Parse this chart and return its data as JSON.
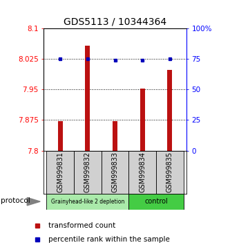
{
  "title": "GDS5113 / 10344364",
  "samples": [
    "GSM999831",
    "GSM999832",
    "GSM999833",
    "GSM999834",
    "GSM999835"
  ],
  "transformed_counts": [
    7.872,
    8.057,
    7.872,
    7.952,
    7.997
  ],
  "percentile_ranks": [
    75,
    75,
    74,
    74,
    75
  ],
  "ylim_left": [
    7.8,
    8.1
  ],
  "ylim_right": [
    0,
    100
  ],
  "yticks_left": [
    7.8,
    7.875,
    7.95,
    8.025,
    8.1
  ],
  "yticks_right": [
    0,
    25,
    50,
    75,
    100
  ],
  "ytick_labels_left": [
    "7.8",
    "7.875",
    "7.95",
    "8.025",
    "8.1"
  ],
  "ytick_labels_right": [
    "0",
    "25",
    "50",
    "75",
    "100%"
  ],
  "bar_color": "#bb1111",
  "dot_color": "#0000bb",
  "group1_samples": [
    0,
    1,
    2
  ],
  "group2_samples": [
    3,
    4
  ],
  "group1_label": "Grainyhead-like 2 depletion",
  "group2_label": "control",
  "group1_color": "#aaeaaa",
  "group2_color": "#44cc44",
  "protocol_label": "protocol",
  "legend_bar_label": "transformed count",
  "legend_dot_label": "percentile rank within the sample",
  "bg_color": "#ffffff",
  "sample_box_color": "#d0d0d0",
  "title_fontsize": 10,
  "tick_fontsize": 7.5,
  "label_fontsize": 7,
  "legend_fontsize": 7.5
}
